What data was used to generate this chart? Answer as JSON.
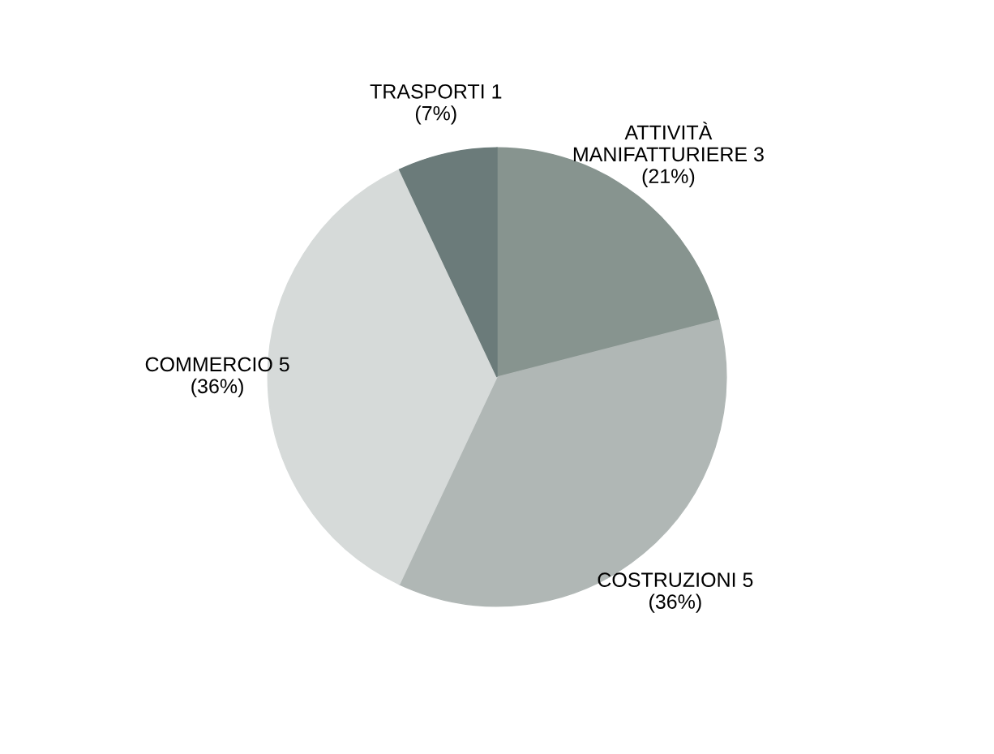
{
  "chart_data": {
    "type": "pie",
    "categories": [
      "ATTIVITÀ\nMANIFATTURIERE 3",
      "COSTRUZIONI 5",
      "COMMERCIO 5",
      "TRASPORTI 1"
    ],
    "values": [
      21,
      36,
      36,
      7
    ],
    "value_labels": [
      "(21%)",
      "(36%)",
      "(36%)",
      "(7%)"
    ],
    "colors": [
      "#87948f",
      "#b0b7b5",
      "#d6dad9",
      "#6b7b7a"
    ],
    "legend": false
  }
}
